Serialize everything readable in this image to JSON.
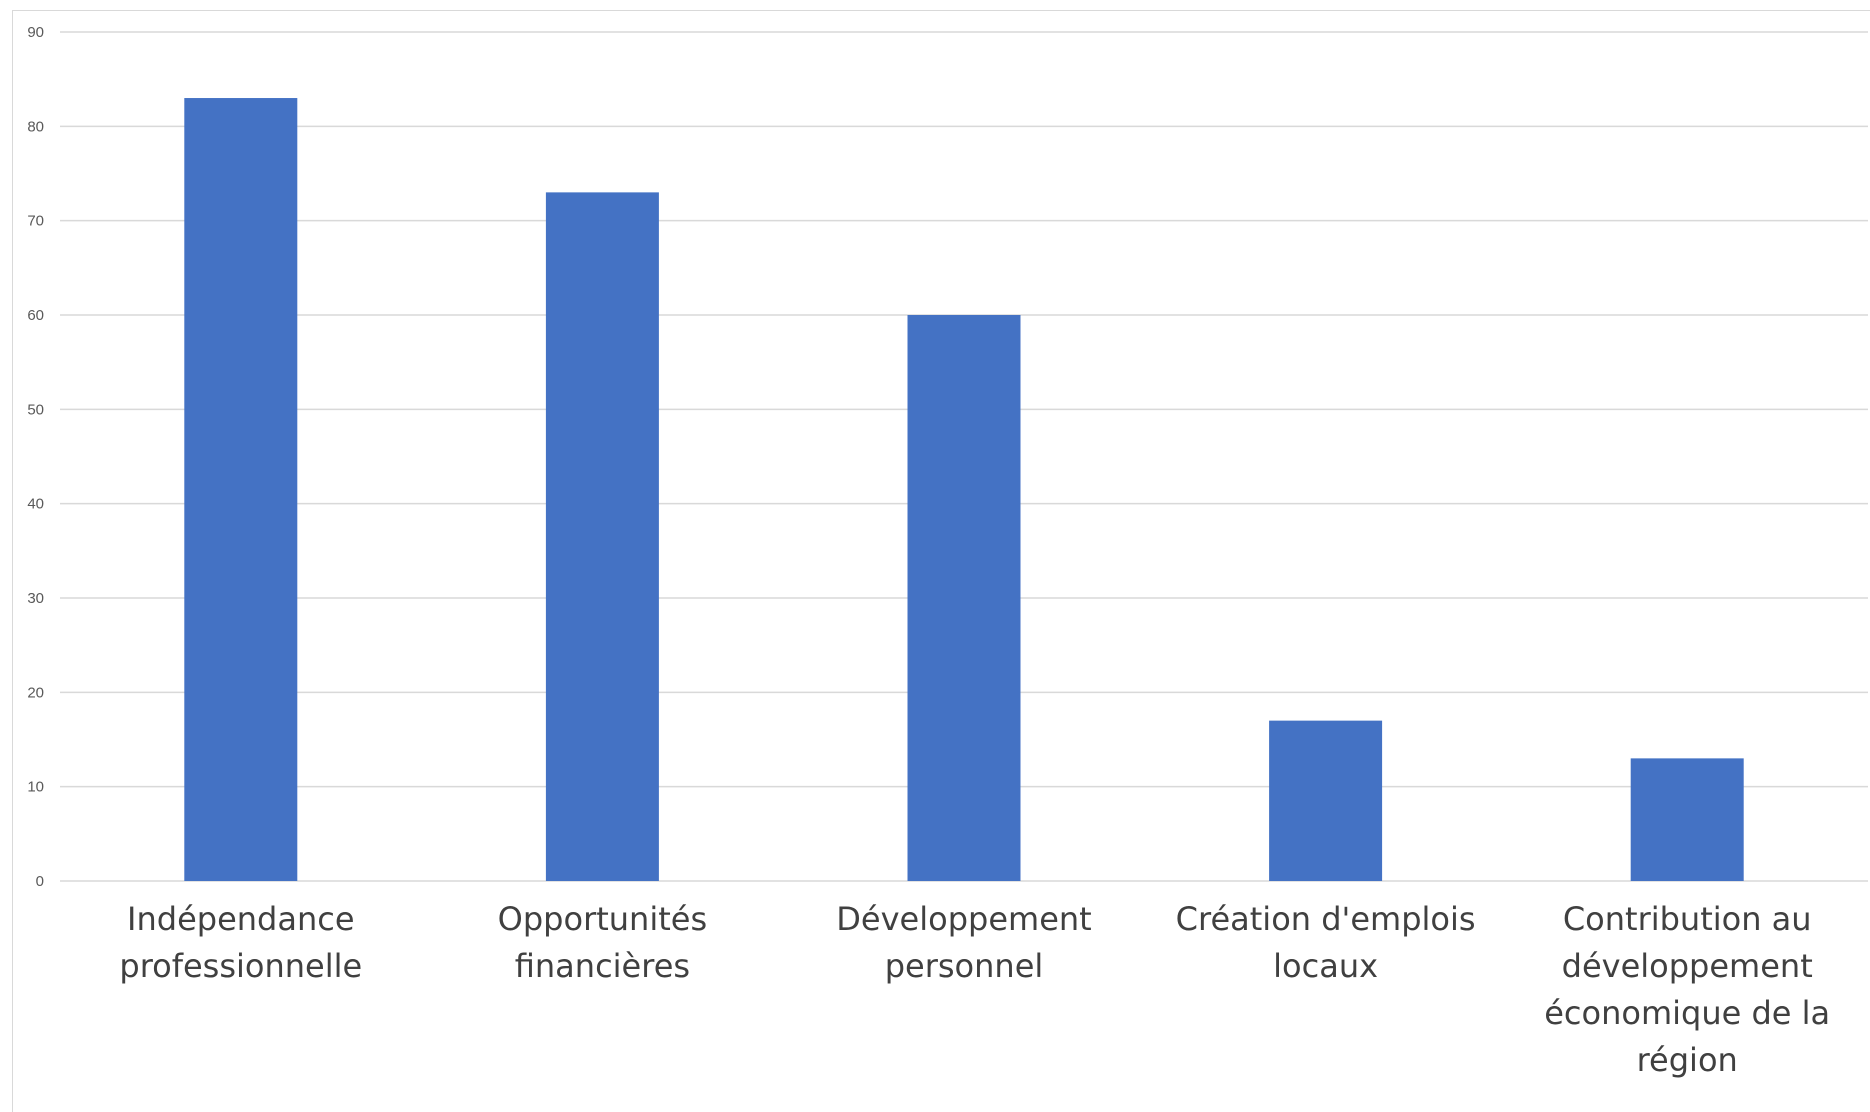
{
  "chart_data": {
    "type": "bar",
    "title": "",
    "xlabel": "",
    "ylabel": "",
    "categories": [
      [
        "Indépendance",
        "professionnelle"
      ],
      [
        "Opportunités",
        "financières"
      ],
      [
        "Développement",
        "personnel"
      ],
      [
        "Création d'emplois",
        "locaux"
      ],
      [
        "Contribution au",
        "développement",
        "économique de la",
        "région"
      ]
    ],
    "values": [
      83,
      73,
      60,
      17,
      13
    ],
    "ylim": [
      0,
      90
    ],
    "yticks": [
      0,
      10,
      20,
      30,
      40,
      50,
      60,
      70,
      80,
      90
    ],
    "grid": true,
    "legend": "none",
    "bar_color": "#4472C4",
    "grid_color": "#D9D9D9"
  }
}
